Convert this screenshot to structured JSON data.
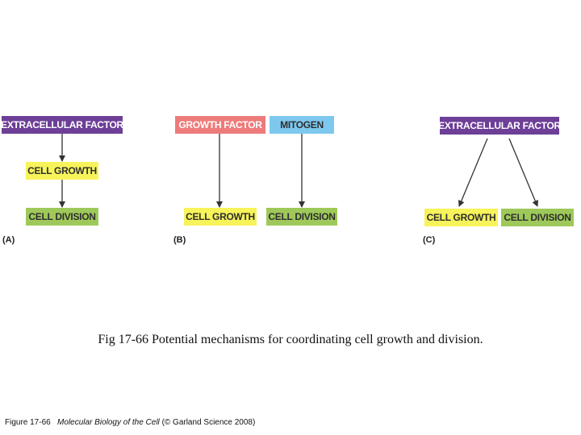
{
  "colors": {
    "purple": "#6d3f97",
    "yellow": "#f7f35a",
    "green": "#9ec95a",
    "salmon": "#ee7b7b",
    "blue": "#7ec8ef",
    "arrow": "#333333"
  },
  "panel_a": {
    "label": "(A)",
    "factor": "EXTRACELLULAR FACTOR",
    "growth": "CELL GROWTH",
    "division": "CELL DIVISION"
  },
  "panel_b": {
    "label": "(B)",
    "growth_factor": "GROWTH FACTOR",
    "mitogen": "MITOGEN",
    "growth": "CELL GROWTH",
    "division": "CELL DIVISION"
  },
  "panel_c": {
    "label": "(C)",
    "factor": "EXTRACELLULAR FACTOR",
    "growth": "CELL GROWTH",
    "division": "CELL DIVISION"
  },
  "caption": "Fig 17-66 Potential mechanisms for coordinating cell growth and division.",
  "credit": {
    "figure": "Figure 17-66",
    "book": "Molecular Biology of the Cell",
    "publisher": "(© Garland Science 2008)"
  }
}
